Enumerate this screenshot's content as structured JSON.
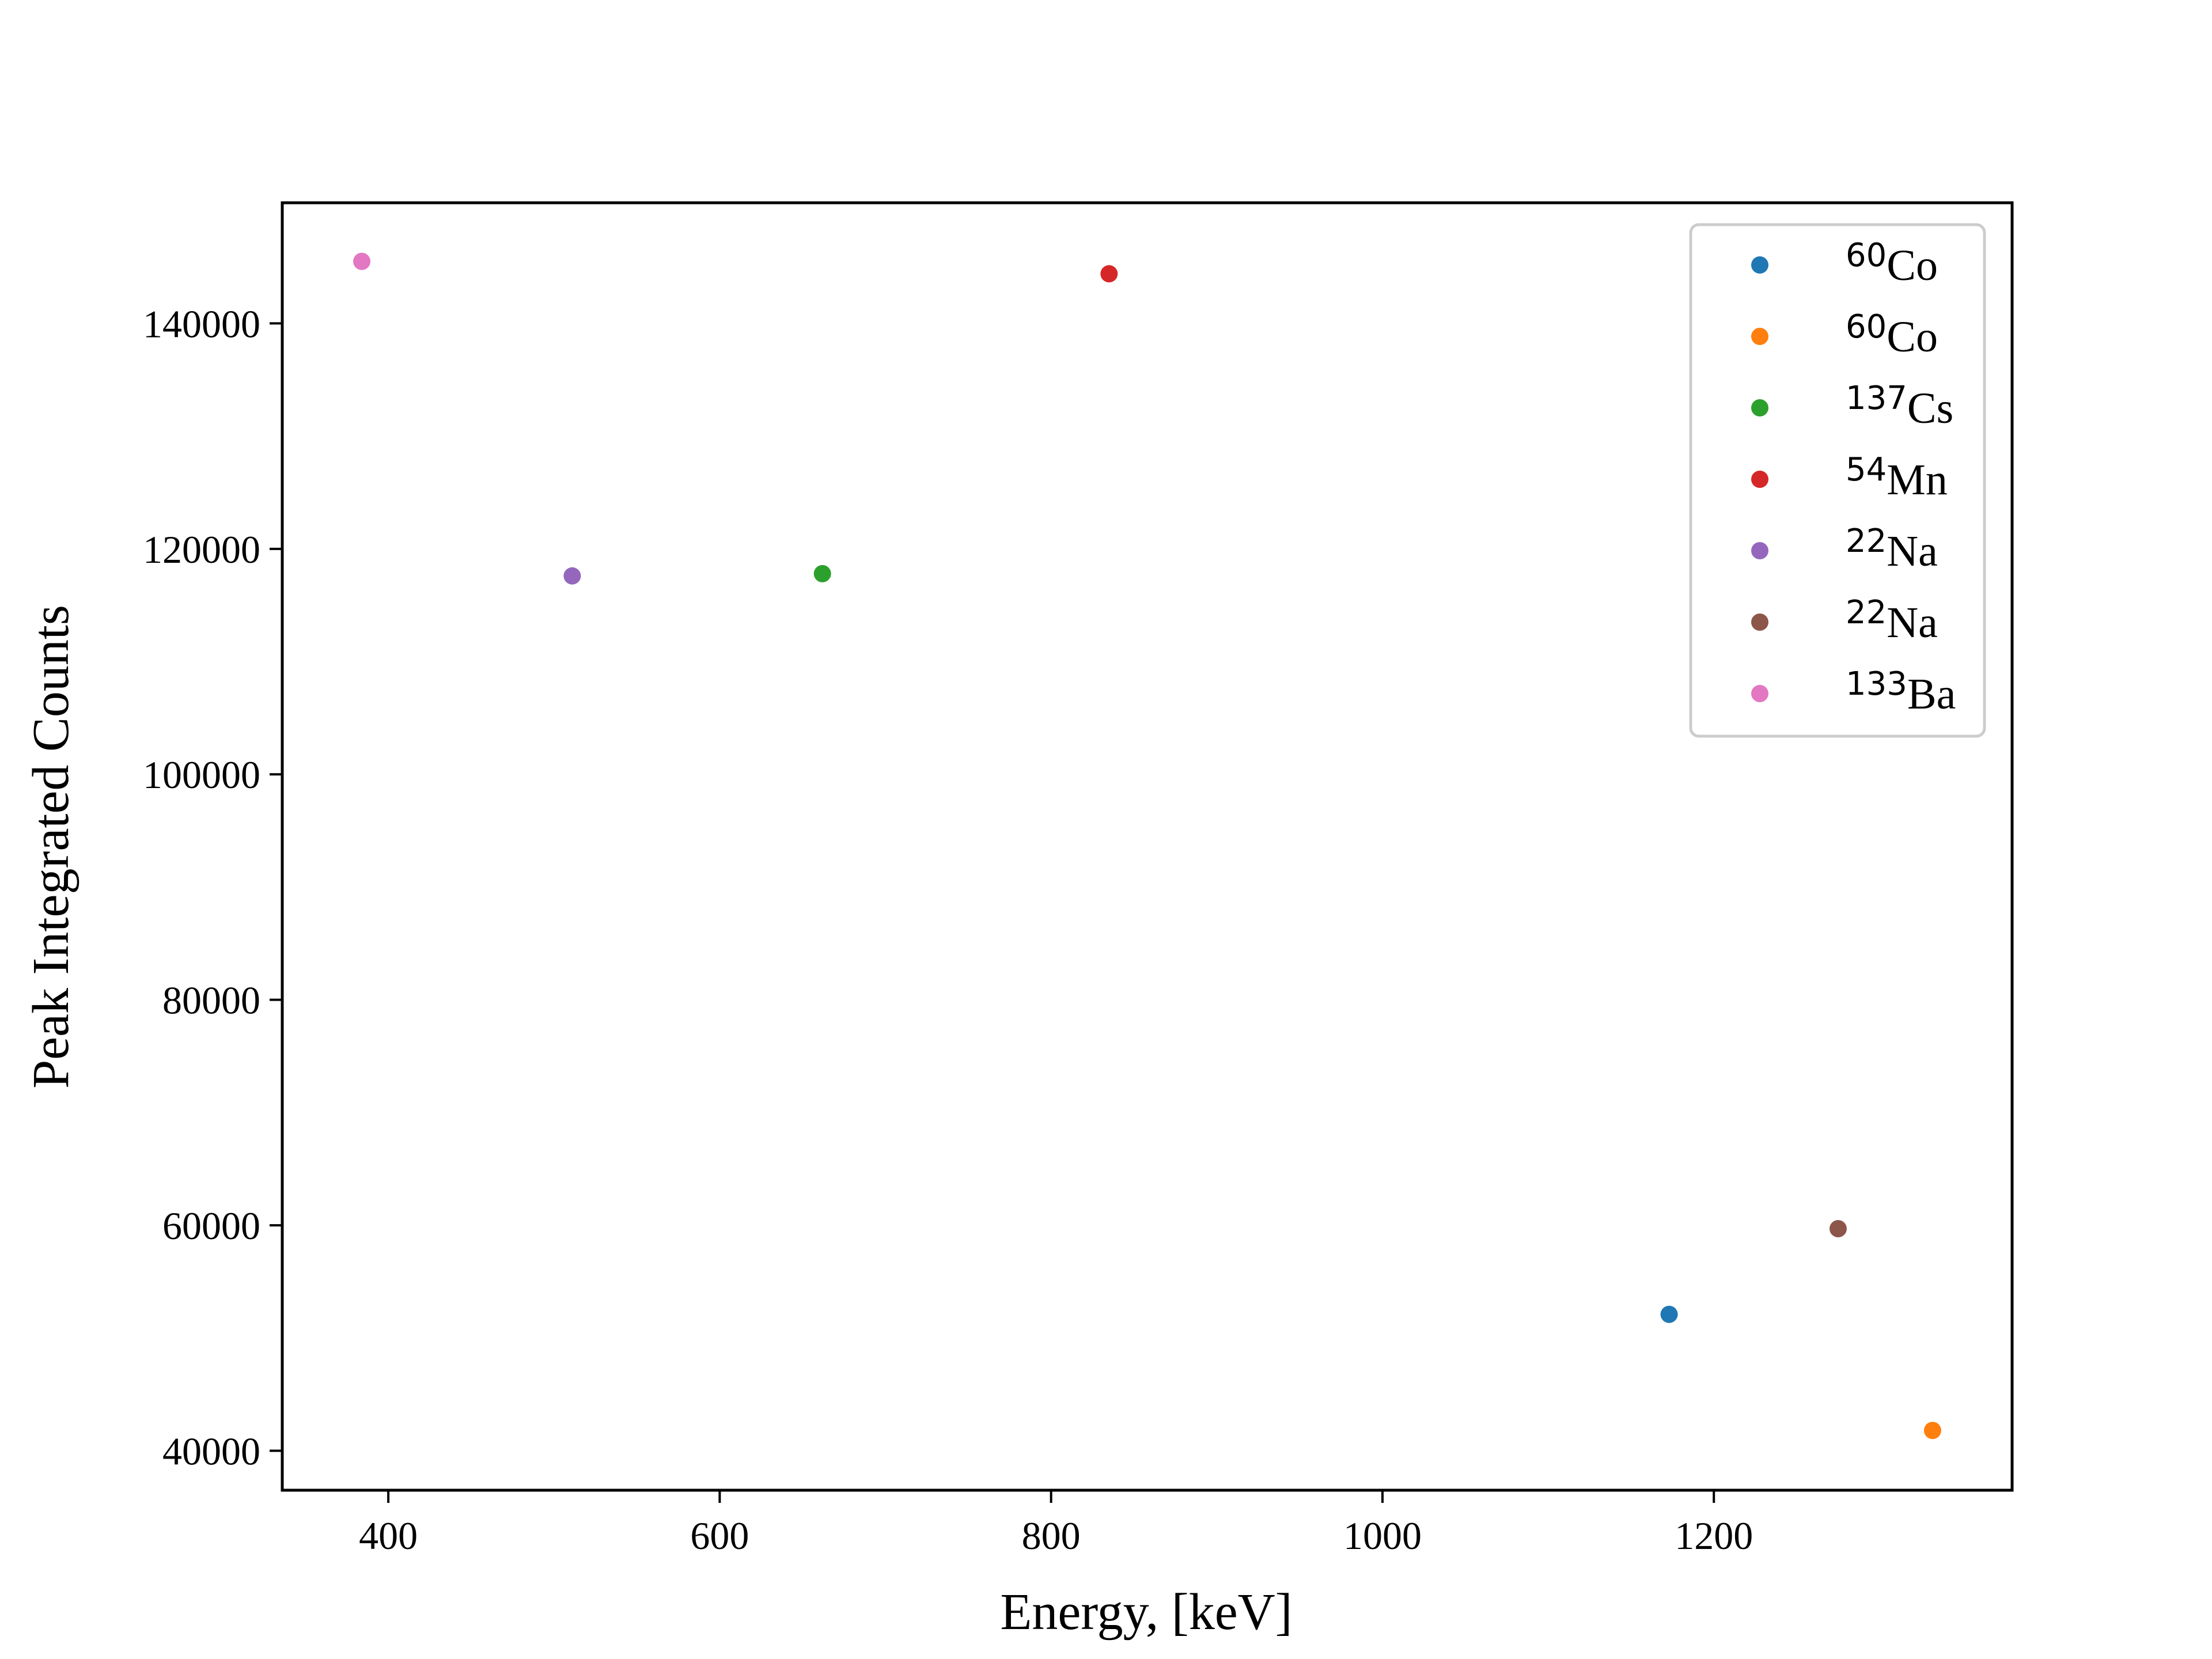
{
  "chart_data": {
    "type": "scatter",
    "title": "",
    "xlabel": "Energy, [keV]",
    "ylabel": "Peak Integrated Counts",
    "xlim": [
      336,
      1380
    ],
    "ylim": [
      36500,
      150700
    ],
    "xticks": [
      400,
      600,
      800,
      1000,
      1200
    ],
    "yticks": [
      40000,
      60000,
      80000,
      100000,
      120000,
      140000
    ],
    "grid": false,
    "legend_position": "top-right",
    "series": [
      {
        "name": "60Co",
        "isotope_mass": "60",
        "element": "Co",
        "color": "#1f77b4",
        "x": [
          1173
        ],
        "y": [
          52100
        ]
      },
      {
        "name": "60Co",
        "isotope_mass": "60",
        "element": "Co",
        "color": "#ff7f0e",
        "x": [
          1332
        ],
        "y": [
          41800
        ]
      },
      {
        "name": "137Cs",
        "isotope_mass": "137",
        "element": "Cs",
        "color": "#2ca02c",
        "x": [
          662
        ],
        "y": [
          117800
        ]
      },
      {
        "name": "54Mn",
        "isotope_mass": "54",
        "element": "Mn",
        "color": "#d62728",
        "x": [
          835
        ],
        "y": [
          144400
        ]
      },
      {
        "name": "22Na",
        "isotope_mass": "22",
        "element": "Na",
        "color": "#9467bd",
        "x": [
          511
        ],
        "y": [
          117600
        ]
      },
      {
        "name": "22Na",
        "isotope_mass": "22",
        "element": "Na",
        "color": "#8c564b",
        "x": [
          1275
        ],
        "y": [
          59700
        ]
      },
      {
        "name": "133Ba",
        "isotope_mass": "133",
        "element": "Ba",
        "color": "#e377c2",
        "x": [
          384
        ],
        "y": [
          145500
        ]
      }
    ]
  }
}
